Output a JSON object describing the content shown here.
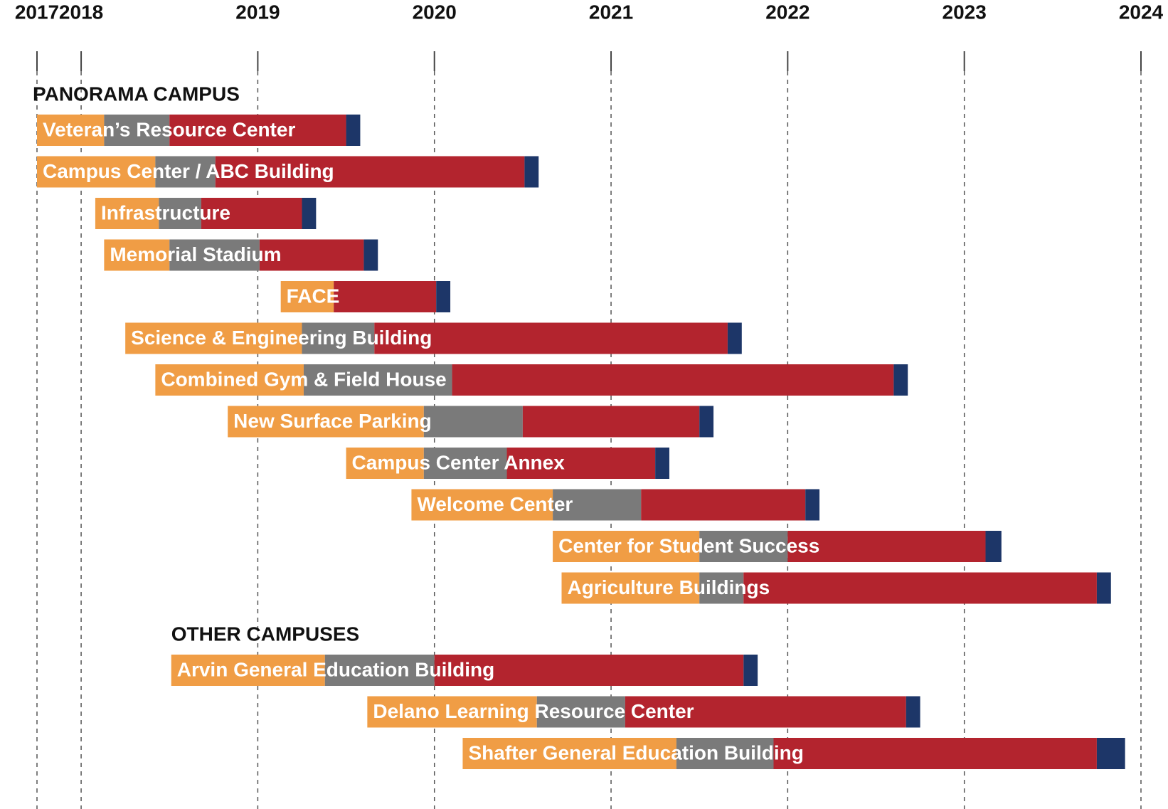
{
  "chart_data": {
    "type": "gantt",
    "xlim": [
      2017.75,
      2024
    ],
    "xticks": [
      {
        "value": 2017.75,
        "label": "2017"
      },
      2018,
      2019,
      2020,
      2021,
      2022,
      2023,
      2024
    ],
    "grid": true,
    "phase_colors": [
      "#f09d45",
      "#7a7a7a",
      "#b3242e",
      "#1d3668"
    ],
    "groups": [
      {
        "title": "PANORAMA CAMPUS",
        "tasks": [
          {
            "name": "Veteran’s Resource Center",
            "start": 2017.75,
            "durations": [
              0.38,
              0.37,
              1.0,
              0.08
            ]
          },
          {
            "name": "Campus Center / ABC Building",
            "start": 2017.75,
            "durations": [
              0.67,
              0.34,
              1.75,
              0.08
            ]
          },
          {
            "name": "Infrastructure",
            "start": 2018.08,
            "durations": [
              0.36,
              0.24,
              0.57,
              0.08
            ]
          },
          {
            "name": "Memorial Stadium",
            "start": 2018.13,
            "durations": [
              0.37,
              0.51,
              0.59,
              0.08
            ]
          },
          {
            "name": "FACE",
            "start": 2019.13,
            "durations": [
              0.3,
              0,
              0.58,
              0.08
            ]
          },
          {
            "name": "Science & Engineering Building",
            "start": 2018.25,
            "durations": [
              1.0,
              0.41,
              2.0,
              0.08
            ]
          },
          {
            "name": "Combined Gym & Field House",
            "start": 2018.42,
            "durations": [
              0.84,
              0.84,
              2.5,
              0.08
            ]
          },
          {
            "name": "New Surface Parking",
            "start": 2018.83,
            "durations": [
              1.11,
              0.56,
              1.0,
              0.08
            ]
          },
          {
            "name": "Campus Center Annex",
            "start": 2019.5,
            "durations": [
              0.44,
              0.47,
              0.84,
              0.08
            ]
          },
          {
            "name": "Welcome Center",
            "start": 2019.87,
            "durations": [
              0.8,
              0.5,
              0.93,
              0.08
            ]
          },
          {
            "name": "Center for Student Success",
            "start": 2020.67,
            "durations": [
              0.83,
              0.5,
              1.12,
              0.09
            ]
          },
          {
            "name": "Agriculture Buildings",
            "start": 2020.72,
            "durations": [
              0.78,
              0.25,
              2.0,
              0.08
            ]
          }
        ]
      },
      {
        "title": "OTHER CAMPUSES",
        "tasks": [
          {
            "name": "Arvin General Education Building",
            "start": 2018.51,
            "durations": [
              0.87,
              0.62,
              1.75,
              0.08
            ]
          },
          {
            "name": "Delano Learning Resource Center",
            "start": 2019.62,
            "durations": [
              0.96,
              0.5,
              1.59,
              0.08
            ]
          },
          {
            "name": "Shafter General Education Building",
            "start": 2020.16,
            "durations": [
              1.21,
              0.55,
              1.83,
              0.16
            ]
          }
        ]
      }
    ]
  }
}
